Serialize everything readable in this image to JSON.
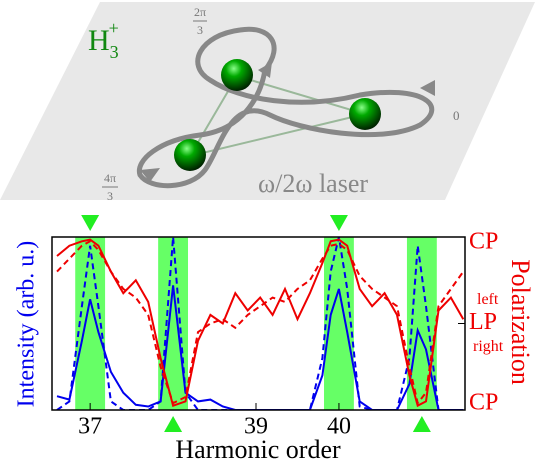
{
  "diagram": {
    "molecule": {
      "base": "H",
      "sub": "3",
      "sup": "+"
    },
    "phase_a": {
      "num": "2π",
      "den": "3"
    },
    "phase_b": {
      "num": "4π",
      "den": "3"
    },
    "phase_c": "0",
    "laser": "ω/2ω laser"
  },
  "chart_data": {
    "type": "line",
    "x_label": "Harmonic order",
    "y_label": "Intensity (arb. u.)",
    "y2_label": "Polarization",
    "annotations": [
      "left",
      "right"
    ],
    "x": [
      36.6,
      36.75,
      36.9,
      37.0,
      37.1,
      37.25,
      37.4,
      37.55,
      37.7,
      37.85,
      38.0,
      38.15,
      38.3,
      38.45,
      38.6,
      38.75,
      38.9,
      39.05,
      39.2,
      39.35,
      39.5,
      39.65,
      39.8,
      39.9,
      40.0,
      40.1,
      40.25,
      40.4,
      40.55,
      40.7,
      40.85,
      40.95,
      41.05,
      41.2,
      41.35,
      41.5
    ],
    "xlim": [
      36.54,
      41.52
    ],
    "xticks": [
      37,
      39,
      40
    ],
    "ylim": [
      0,
      1
    ],
    "y2lim": [
      -1,
      1
    ],
    "y2ticks": [
      {
        "value": 1,
        "label": "CP"
      },
      {
        "value": 0,
        "label": "LP"
      },
      {
        "value": -1,
        "label": "CP"
      }
    ],
    "highlights": [
      37,
      38,
      40,
      41
    ],
    "highlight_halfwidth": 0.18,
    "highlight_color": "#66ff66",
    "markers_top": [
      37,
      40
    ],
    "markers_bottom": [
      38,
      41
    ],
    "marker_color": "#22ee22",
    "series": [
      {
        "color": "#0000ee",
        "dash": true,
        "values": [
          0,
          0.05,
          0.6,
          0.95,
          0.6,
          0.05,
          0,
          0,
          0,
          0.05,
          1.0,
          0.1,
          0,
          0,
          0,
          0,
          0,
          0,
          0,
          0,
          0,
          0,
          0.3,
          0.8,
          1.0,
          0.7,
          0.02,
          0,
          0,
          0,
          0.3,
          0.95,
          0.6,
          0,
          0,
          0
        ]
      },
      {
        "color": "#0000ee",
        "dash": false,
        "values": [
          0.08,
          0.06,
          0.4,
          0.64,
          0.45,
          0.22,
          0.1,
          0.03,
          0.02,
          0.05,
          0.72,
          0.1,
          0.05,
          0.06,
          0.02,
          0,
          0,
          0,
          0,
          0,
          0,
          0,
          0.2,
          0.55,
          0.7,
          0.45,
          0.05,
          0,
          0,
          0,
          0.15,
          0.46,
          0.35,
          0,
          0,
          0
        ]
      },
      {
        "color": "#ee0000",
        "dash": true,
        "axis": "y2",
        "values": [
          0.6,
          0.75,
          0.9,
          0.95,
          0.85,
          0.6,
          0.4,
          0.3,
          0.1,
          -0.5,
          -0.92,
          -0.85,
          -0.1,
          0.0,
          0.05,
          -0.05,
          0.1,
          0.2,
          0.3,
          0.25,
          0.4,
          0.5,
          0.75,
          0.9,
          0.92,
          0.85,
          0.55,
          0.4,
          0.3,
          0.2,
          -0.5,
          -0.92,
          -0.8,
          0.2,
          0.4,
          0.6
        ]
      },
      {
        "color": "#ee0000",
        "dash": false,
        "axis": "y2",
        "values": [
          0.78,
          0.9,
          0.95,
          0.97,
          0.9,
          0.6,
          0.35,
          0.5,
          0.25,
          -0.4,
          -0.95,
          -0.9,
          -0.2,
          0.1,
          0.0,
          0.35,
          0.15,
          0.3,
          0.1,
          0.4,
          0.05,
          0.35,
          0.7,
          0.95,
          0.97,
          0.9,
          0.4,
          0.2,
          0.35,
          0.1,
          -0.6,
          -0.95,
          -0.9,
          0.15,
          0.3,
          0.05
        ]
      }
    ]
  }
}
